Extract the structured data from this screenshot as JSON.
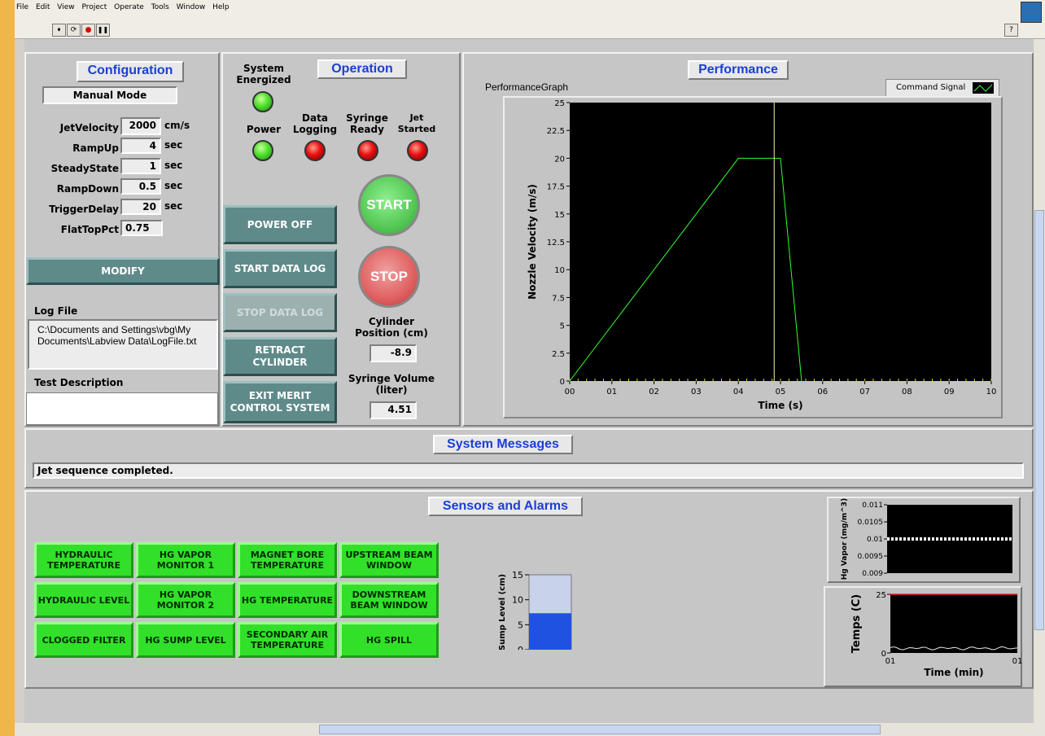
{
  "menu": [
    "File",
    "Edit",
    "View",
    "Project",
    "Operate",
    "Tools",
    "Window",
    "Help"
  ],
  "toolbar": {
    "run_glyph": "➧",
    "run_cont_glyph": "⟳",
    "abort_glyph": "●",
    "pause_glyph": "❚❚",
    "help_glyph": "?"
  },
  "configuration": {
    "title": "Configuration",
    "mode": "Manual Mode",
    "fields": [
      {
        "label": "JetVelocity",
        "value": "2000",
        "unit": "cm/s"
      },
      {
        "label": "RampUp",
        "value": "4",
        "unit": "sec"
      },
      {
        "label": "SteadyState",
        "value": "1",
        "unit": "sec"
      },
      {
        "label": "RampDown",
        "value": "0.5",
        "unit": "sec"
      },
      {
        "label": "TriggerDelay",
        "value": "20",
        "unit": "sec"
      },
      {
        "label": "FlatTopPct",
        "value": "0.75",
        "unit": ""
      }
    ],
    "modify_label": "MODIFY",
    "log_file_label": "Log File",
    "log_file_value": "C:\\Documents and Settings\\vbg\\My Documents\\Labview Data\\LogFile.txt",
    "test_description_label": "Test Description",
    "test_description_value": ""
  },
  "operation": {
    "title": "Operation",
    "system_energized_label": "System Energized",
    "indicators": [
      {
        "label": "Power",
        "state": "green"
      },
      {
        "label": "Data Logging",
        "state": "red"
      },
      {
        "label": "Syringe Ready",
        "state": "red"
      },
      {
        "label": "Jet Started",
        "state": "red"
      }
    ],
    "buttons": {
      "power_off": "POWER OFF",
      "start_data_log": "START DATA LOG",
      "stop_data_log": "STOP DATA LOG",
      "retract_cylinder": "RETRACT CYLINDER",
      "exit": "EXIT MERIT CONTROL SYSTEM"
    },
    "start_label": "START",
    "stop_label": "STOP",
    "cylinder_position_label": "Cylinder Position (cm)",
    "cylinder_position_value": "-8.9",
    "syringe_volume_label": "Syringe Volume (liter)",
    "syringe_volume_value": "4.51"
  },
  "performance": {
    "title": "Performance",
    "graph_label": "PerformanceGraph",
    "legend_label": "Command Signal",
    "chart_data": {
      "type": "line",
      "xlabel": "Time (s)",
      "ylabel": "Nozzle Velocity (m/s)",
      "xlim": [
        0,
        10
      ],
      "ylim": [
        0,
        25
      ],
      "x_ticks": [
        "00",
        "01",
        "02",
        "03",
        "04",
        "05",
        "06",
        "07",
        "08",
        "09",
        "10"
      ],
      "y_ticks": [
        "0",
        "2.5",
        "5",
        "7.5",
        "10",
        "12.5",
        "15",
        "17.5",
        "20",
        "22.5",
        "25"
      ],
      "series": [
        {
          "name": "Command Signal",
          "color": "#33ff33",
          "x": [
            0,
            4,
            5,
            5.5
          ],
          "y": [
            0,
            20,
            20,
            0
          ]
        }
      ],
      "cursor_x": 4.85,
      "cursor_color": "#f5f5a0",
      "background": "#000000"
    }
  },
  "messages": {
    "title": "System Messages",
    "text": "Jet sequence completed."
  },
  "sensors": {
    "title": "Sensors and Alarms",
    "alarms": [
      [
        "HYDRAULIC TEMPERATURE",
        "HG VAPOR MONITOR 1",
        "MAGNET BORE TEMPERATURE",
        "UPSTREAM BEAM WINDOW"
      ],
      [
        "HYDRAULIC LEVEL",
        "HG VAPOR MONITOR 2",
        "HG TEMPERATURE",
        "DOWNSTREAM BEAM WINDOW"
      ],
      [
        "CLOGGED FILTER",
        "HG SUMP LEVEL",
        "SECONDARY AIR TEMPERATURE",
        "HG SPILL"
      ]
    ],
    "sump": {
      "ylabel": "Sump Level (cm)",
      "ticks": [
        "15",
        "10",
        "5",
        "0"
      ],
      "max": 15,
      "value": 7.3
    },
    "hg_vapor_chart": {
      "type": "line",
      "ylabel": "Hg Vapor (mg/m^3)",
      "y_ticks": [
        "0.011",
        "0.0105",
        "0.01",
        "0.0095",
        "0.009"
      ],
      "ylim": [
        0.009,
        0.011
      ],
      "value": 0.01
    },
    "temps_chart": {
      "type": "line",
      "ylabel": "Temps (C)",
      "xlabel": "Time (min)",
      "y_ticks": [
        "25",
        "0"
      ],
      "x_ticks": [
        "01",
        "01"
      ],
      "ylim": [
        0,
        25
      ],
      "red_value": 25,
      "white_value": 2
    }
  }
}
